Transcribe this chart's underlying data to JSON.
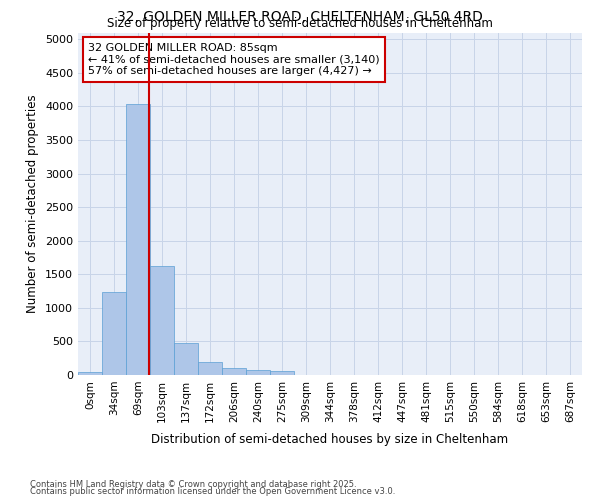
{
  "title1": "32, GOLDEN MILLER ROAD, CHELTENHAM, GL50 4RD",
  "title2": "Size of property relative to semi-detached houses in Cheltenham",
  "xlabel": "Distribution of semi-detached houses by size in Cheltenham",
  "ylabel": "Number of semi-detached properties",
  "categories": [
    "0sqm",
    "34sqm",
    "69sqm",
    "103sqm",
    "137sqm",
    "172sqm",
    "206sqm",
    "240sqm",
    "275sqm",
    "309sqm",
    "344sqm",
    "378sqm",
    "412sqm",
    "447sqm",
    "481sqm",
    "515sqm",
    "550sqm",
    "584sqm",
    "618sqm",
    "653sqm",
    "687sqm"
  ],
  "bar_values": [
    40,
    1230,
    4040,
    1630,
    475,
    195,
    110,
    70,
    55,
    0,
    0,
    0,
    0,
    0,
    0,
    0,
    0,
    0,
    0,
    0,
    0
  ],
  "bar_color": "#aec6e8",
  "bar_edge_color": "#5a9fd4",
  "vline_x": 2.47,
  "vline_color": "#cc0000",
  "annotation_line1": "32 GOLDEN MILLER ROAD: 85sqm",
  "annotation_line2": "← 41% of semi-detached houses are smaller (3,140)",
  "annotation_line3": "57% of semi-detached houses are larger (4,427) →",
  "annotation_box_color": "#cc0000",
  "ylim": [
    0,
    5100
  ],
  "yticks": [
    0,
    500,
    1000,
    1500,
    2000,
    2500,
    3000,
    3500,
    4000,
    4500,
    5000
  ],
  "grid_color": "#c8d4e8",
  "bg_color": "#e8eef8",
  "footer1": "Contains HM Land Registry data © Crown copyright and database right 2025.",
  "footer2": "Contains public sector information licensed under the Open Government Licence v3.0."
}
